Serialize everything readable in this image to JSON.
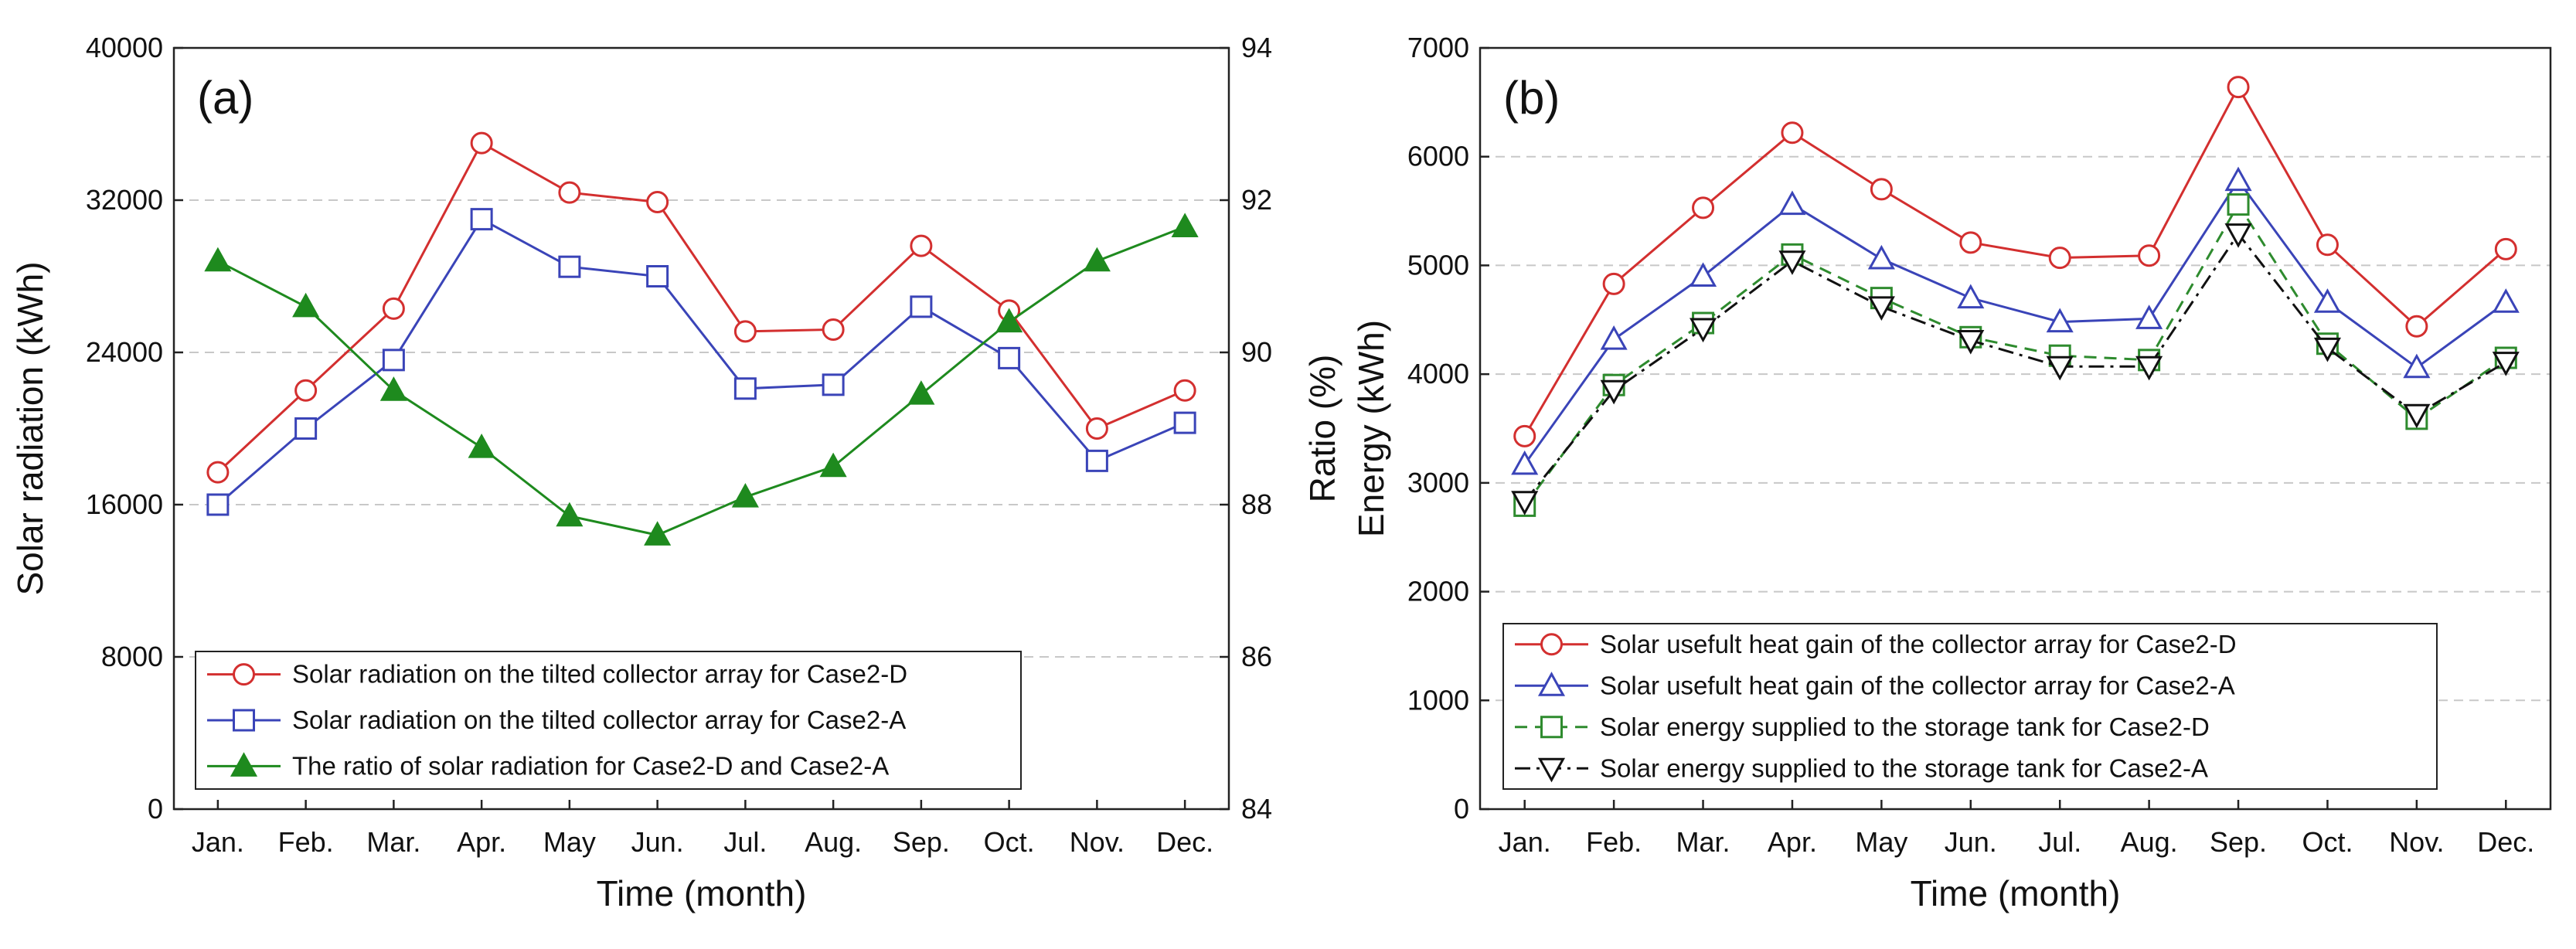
{
  "chart_data": [
    {
      "type": "line",
      "panel_label": "(a)",
      "categories": [
        "Jan.",
        "Feb.",
        "Mar.",
        "Apr.",
        "May",
        "Jun.",
        "Jul.",
        "Aug.",
        "Sep.",
        "Oct.",
        "Nov.",
        "Dec."
      ],
      "xlabel": "Time (month)",
      "ylabel": "Solar radiation (kWh)",
      "ylabel_right": "Ratio (%)",
      "ylim": [
        0,
        40000
      ],
      "yticks": [
        "0",
        "8000",
        "16000",
        "24000",
        "32000",
        "40000"
      ],
      "ylim_right": [
        84,
        94
      ],
      "yticks_right": [
        "84",
        "86",
        "88",
        "90",
        "92",
        "94"
      ],
      "grid": "horizontal dashed",
      "legend_position": "bottom-left",
      "series": [
        {
          "name": "Solar radiation on the tilted collector array for Case2-D",
          "axis": "left",
          "color": "#d32f2f",
          "marker": "circle",
          "dash": "solid",
          "values": [
            17700,
            22000,
            26300,
            35000,
            32400,
            31900,
            25100,
            25200,
            29600,
            26200,
            20000,
            22000
          ]
        },
        {
          "name": "Solar radiation on the tilted collector array for Case2-A",
          "axis": "left",
          "color": "#3a44b8",
          "marker": "square",
          "dash": "solid",
          "values": [
            16000,
            20000,
            23600,
            31000,
            28500,
            28000,
            22100,
            22300,
            26400,
            23700,
            18300,
            20300
          ]
        },
        {
          "name": "The ratio of solar radiation for Case2-D and Case2-A",
          "axis": "right",
          "color": "#1e8a1e",
          "marker": "filled-triangle",
          "dash": "solid",
          "values": [
            91.2,
            90.6,
            89.5,
            88.75,
            87.85,
            87.6,
            88.1,
            88.5,
            89.45,
            90.4,
            91.2,
            91.65
          ]
        }
      ]
    },
    {
      "type": "line",
      "panel_label": "(b)",
      "categories": [
        "Jan.",
        "Feb.",
        "Mar.",
        "Apr.",
        "May",
        "Jun.",
        "Jul.",
        "Aug.",
        "Sep.",
        "Oct.",
        "Nov.",
        "Dec."
      ],
      "xlabel": "Time (month)",
      "ylabel": "Energy (kWh)",
      "ylim": [
        0,
        7000
      ],
      "yticks": [
        "0",
        "1000",
        "2000",
        "3000",
        "4000",
        "5000",
        "6000",
        "7000"
      ],
      "grid": "horizontal dashed",
      "legend_position": "bottom-left",
      "series": [
        {
          "name": "Solar usefult heat gain of the collector array for Case2-D",
          "color": "#d32f2f",
          "marker": "circle",
          "dash": "solid",
          "values": [
            3430,
            4830,
            5530,
            6220,
            5700,
            5210,
            5070,
            5090,
            6640,
            5190,
            4440,
            5150
          ]
        },
        {
          "name": "Solar usefult heat gain of the collector array for Case2-A",
          "color": "#3a44b8",
          "marker": "triangle",
          "dash": "solid",
          "values": [
            3170,
            4320,
            4900,
            5560,
            5060,
            4700,
            4480,
            4510,
            5780,
            4660,
            4060,
            4660
          ]
        },
        {
          "name": "Solar energy supplied to the storage tank for Case2-D",
          "color": "#2e8b2e",
          "marker": "square",
          "dash": "dashed",
          "values": [
            2790,
            3900,
            4470,
            5100,
            4700,
            4340,
            4170,
            4130,
            5560,
            4280,
            3590,
            4150
          ]
        },
        {
          "name": "Solar energy supplied to the storage tank for Case2-A",
          "color": "#111111",
          "marker": "down-triangle",
          "dash": "dashdot",
          "values": [
            2830,
            3850,
            4420,
            5040,
            4620,
            4310,
            4070,
            4070,
            5290,
            4240,
            3630,
            4110
          ]
        }
      ]
    }
  ]
}
